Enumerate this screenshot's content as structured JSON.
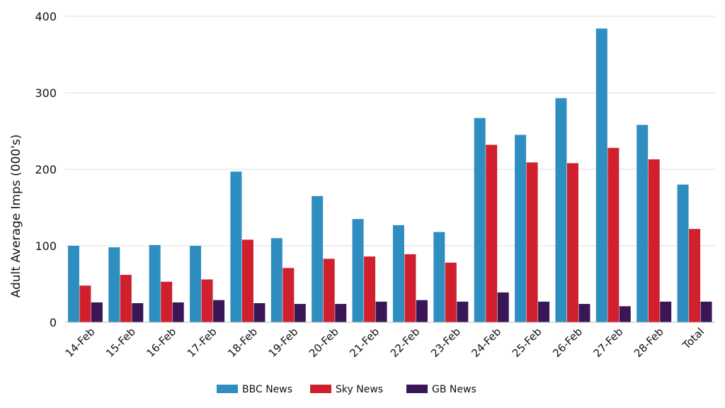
{
  "chart_data": {
    "type": "bar",
    "title": "",
    "xlabel": "",
    "ylabel": "Adult Average Imps (000's)",
    "ylim": [
      0,
      400
    ],
    "yticks": [
      0,
      100,
      200,
      300,
      400
    ],
    "grid": true,
    "legend_position": "bottom",
    "categories": [
      "14-Feb",
      "15-Feb",
      "16-Feb",
      "17-Feb",
      "18-Feb",
      "19-Feb",
      "20-Feb",
      "21-Feb",
      "22-Feb",
      "23-Feb",
      "24-Feb",
      "25-Feb",
      "26-Feb",
      "27-Feb",
      "28-Feb",
      "Total"
    ],
    "series": [
      {
        "name": "BBC News",
        "color": "#2E8EBF",
        "values": [
          100,
          98,
          101,
          100,
          197,
          110,
          165,
          135,
          127,
          118,
          267,
          245,
          293,
          384,
          258,
          180
        ]
      },
      {
        "name": "Sky News",
        "color": "#D0202E",
        "values": [
          48,
          62,
          53,
          56,
          108,
          71,
          83,
          86,
          89,
          78,
          232,
          209,
          208,
          228,
          213,
          122
        ]
      },
      {
        "name": "GB News",
        "color": "#3A1657",
        "values": [
          26,
          25,
          26,
          29,
          25,
          24,
          24,
          27,
          29,
          27,
          39,
          27,
          24,
          21,
          27,
          27
        ]
      }
    ]
  }
}
